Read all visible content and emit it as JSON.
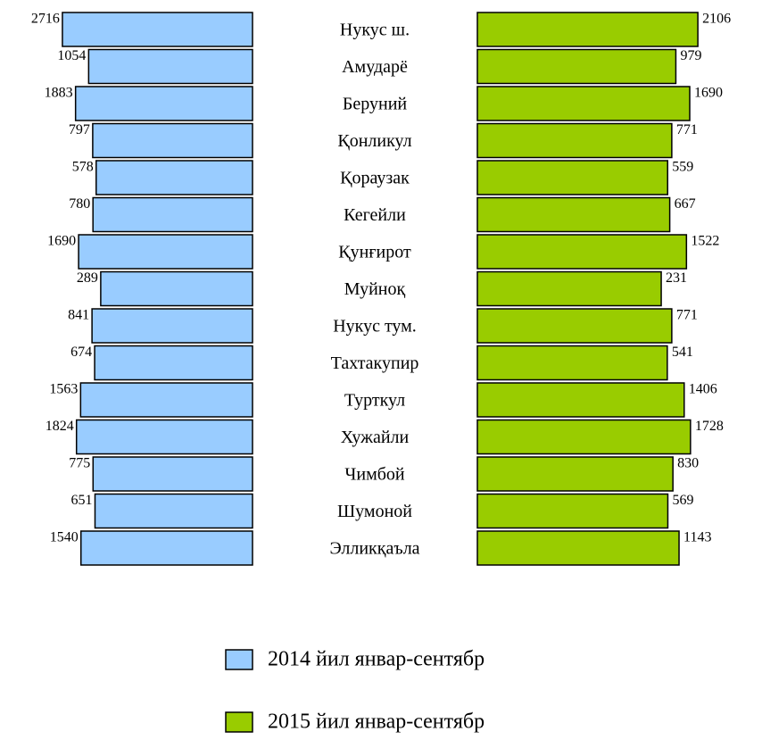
{
  "chart_data": {
    "type": "butterfly",
    "categories": [
      "Нукус ш.",
      "Амударё",
      "Беруний",
      "Қонликул",
      "Қораузак",
      "Кегейли",
      "Қунғирот",
      "Муйноқ",
      "Нукус тум.",
      "Тахтакупир",
      "Турткул",
      "Хужайли",
      "Чимбой",
      "Шумоной",
      "Элликқаъла"
    ],
    "series": [
      {
        "name": "2014 йил январ-сентябр",
        "color": "#99ccff",
        "values": [
          2716,
          1054,
          1883,
          797,
          578,
          780,
          1690,
          289,
          841,
          674,
          1563,
          1824,
          775,
          651,
          1540
        ]
      },
      {
        "name": "2015 йил январ-сентябр",
        "color": "#99cc00",
        "values": [
          2106,
          979,
          1690,
          771,
          559,
          667,
          1522,
          231,
          771,
          541,
          1406,
          1728,
          830,
          569,
          1143
        ]
      }
    ]
  }
}
